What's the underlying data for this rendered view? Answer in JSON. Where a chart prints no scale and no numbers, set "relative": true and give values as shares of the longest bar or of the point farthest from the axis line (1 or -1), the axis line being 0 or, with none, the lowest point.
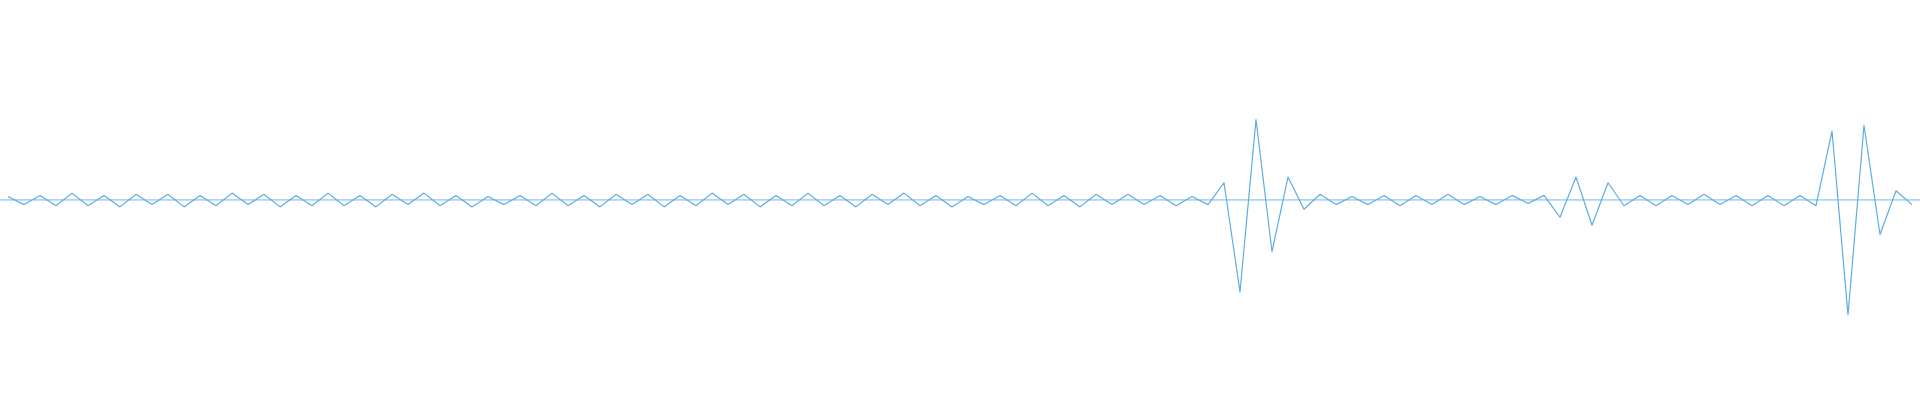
{
  "chart_data": {
    "type": "line",
    "relative": true,
    "color": "#5dade2",
    "line_style": "solid",
    "ref_lines": [
      {
        "axis": "y",
        "value": 0,
        "color": "#5dade2"
      }
    ],
    "categories": [
      null,
      null,
      null,
      null,
      null,
      null,
      null,
      null,
      null,
      null,
      null,
      null,
      null,
      null,
      null,
      null,
      null,
      null,
      null,
      null,
      null,
      null,
      null,
      null,
      null,
      null,
      null,
      null,
      null,
      null,
      null,
      null,
      null,
      null,
      null,
      null,
      null,
      null,
      null,
      null,
      null,
      null,
      null,
      null,
      null,
      null,
      null,
      null,
      null,
      null,
      null,
      null,
      null,
      null,
      null,
      null,
      null,
      null,
      null,
      null,
      null,
      null,
      null,
      null,
      null,
      null,
      null,
      null,
      null,
      null,
      null,
      null,
      null,
      null,
      null,
      null,
      null,
      null,
      null,
      null,
      null,
      null,
      null,
      null,
      null,
      null,
      null,
      null,
      null,
      null,
      null,
      null,
      null,
      null,
      null,
      null,
      null,
      null,
      null,
      null,
      null,
      null,
      null,
      null,
      null,
      null,
      null,
      null,
      null,
      null,
      null,
      null,
      null,
      null,
      null,
      null,
      null,
      null,
      null,
      null
    ],
    "values": [
      0.03,
      -0.04,
      0.04,
      -0.05,
      0.06,
      -0.05,
      0.04,
      -0.06,
      0.05,
      -0.04,
      0.05,
      -0.06,
      0.04,
      -0.05,
      0.06,
      -0.04,
      0.05,
      -0.06,
      0.04,
      -0.05,
      0.06,
      -0.05,
      0.04,
      -0.06,
      0.05,
      -0.04,
      0.06,
      -0.05,
      0.04,
      -0.06,
      0.03,
      -0.04,
      0.04,
      -0.05,
      0.06,
      -0.05,
      0.04,
      -0.06,
      0.05,
      -0.04,
      0.05,
      -0.06,
      0.04,
      -0.05,
      0.06,
      -0.04,
      0.05,
      -0.06,
      0.04,
      -0.05,
      0.06,
      -0.05,
      0.04,
      -0.06,
      0.05,
      -0.04,
      0.06,
      -0.05,
      0.04,
      -0.06,
      0.03,
      -0.04,
      0.04,
      -0.05,
      0.06,
      -0.05,
      0.04,
      -0.06,
      0.05,
      -0.04,
      0.05,
      -0.04,
      0.04,
      -0.05,
      0.03,
      -0.04,
      0.15,
      -0.8,
      0.7,
      -0.45,
      0.2,
      -0.08,
      0.05,
      -0.04,
      0.03,
      -0.04,
      0.04,
      -0.05,
      0.04,
      -0.04,
      0.05,
      -0.04,
      0.03,
      -0.04,
      0.04,
      -0.03,
      0.04,
      -0.15,
      0.2,
      -0.22,
      0.15,
      -0.05,
      0.04,
      -0.05,
      0.04,
      -0.04,
      0.05,
      -0.04,
      0.04,
      -0.05,
      0.04,
      -0.05,
      0.04,
      -0.05,
      0.6,
      -1,
      0.65,
      -0.3,
      0.08,
      -0.04
    ]
  }
}
